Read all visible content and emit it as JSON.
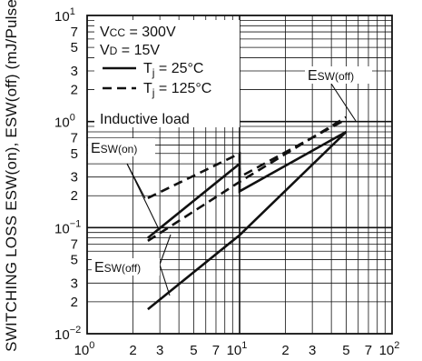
{
  "chart_data": {
    "type": "line",
    "x_scale": "log",
    "y_scale": "log",
    "xlim": [
      1,
      100
    ],
    "ylim": [
      0.01,
      10
    ],
    "grid": true,
    "ylabel": "SWITCHING LOSS  ESW(on), ESW(off)  (mJ/Pulse)",
    "y_major_ticks": [
      {
        "value": 0.01,
        "mantissa": "10",
        "exp": "−2"
      },
      {
        "value": 0.1,
        "mantissa": "10",
        "exp": "−1"
      },
      {
        "value": 1,
        "mantissa": "10",
        "exp": "0"
      },
      {
        "value": 10,
        "mantissa": "10",
        "exp": "1"
      }
    ],
    "x_major_ticks": [
      {
        "value": 1,
        "mantissa": "10",
        "exp": "0"
      },
      {
        "value": 10,
        "mantissa": "10",
        "exp": "1"
      },
      {
        "value": 100,
        "mantissa": "10",
        "exp": "2"
      }
    ],
    "x_minor_labels": [
      {
        "value": 2,
        "label": "2"
      },
      {
        "value": 3,
        "label": "3"
      },
      {
        "value": 5,
        "label": "5"
      },
      {
        "value": 7,
        "label": "7"
      },
      {
        "value": 20,
        "label": "2"
      },
      {
        "value": 30,
        "label": "3"
      },
      {
        "value": 50,
        "label": "5"
      },
      {
        "value": 70,
        "label": "7"
      }
    ],
    "y_minor_labels": [
      {
        "value": 0.02,
        "label": "2"
      },
      {
        "value": 0.03,
        "label": "3"
      },
      {
        "value": 0.05,
        "label": "5"
      },
      {
        "value": 0.07,
        "label": "7"
      },
      {
        "value": 0.2,
        "label": "2"
      },
      {
        "value": 0.3,
        "label": "3"
      },
      {
        "value": 0.5,
        "label": "5"
      },
      {
        "value": 0.7,
        "label": "7"
      },
      {
        "value": 2,
        "label": "2"
      },
      {
        "value": 3,
        "label": "3"
      },
      {
        "value": 5,
        "label": "5"
      },
      {
        "value": 7,
        "label": "7"
      }
    ],
    "conditions": {
      "vcc": {
        "main": "V",
        "sub": "CC",
        "rest": " = 300V"
      },
      "vd": {
        "main": "V",
        "sub": "D",
        "rest": " = 15V"
      },
      "load": "Inductive load"
    },
    "legend": [
      {
        "style": "solid",
        "main": "T",
        "sub": "j",
        "rest": " = 25°C"
      },
      {
        "style": "dashed",
        "main": "T",
        "sub": "j",
        "rest": " = 125°C"
      }
    ],
    "series": [
      {
        "curve": "ESW(on)",
        "style": "dashed",
        "x": [
          2.5,
          10,
          10,
          50
        ],
        "y": [
          0.19,
          0.5,
          0.3,
          1.05
        ]
      },
      {
        "curve": "ESW(on)",
        "style": "solid",
        "x": [
          2.5,
          10,
          10,
          50
        ],
        "y": [
          0.08,
          0.4,
          0.22,
          0.8
        ]
      },
      {
        "curve": "ESW(off)",
        "style": "dashed",
        "x": [
          2.5,
          10,
          50
        ],
        "y": [
          0.075,
          0.27,
          1.1
        ]
      },
      {
        "curve": "ESW(off)",
        "style": "solid",
        "x": [
          2.5,
          10,
          50
        ],
        "y": [
          0.017,
          0.085,
          0.8
        ]
      }
    ],
    "annotations": [
      {
        "id": "eswon-label",
        "main": "E",
        "sw": "SW",
        "suffix": "(on)"
      },
      {
        "id": "eswoff-label-left",
        "main": "E",
        "sw": "SW",
        "suffix": "(off)"
      },
      {
        "id": "eswoff-label-right",
        "main": "E",
        "sw": "SW",
        "suffix": "(off)"
      }
    ]
  }
}
